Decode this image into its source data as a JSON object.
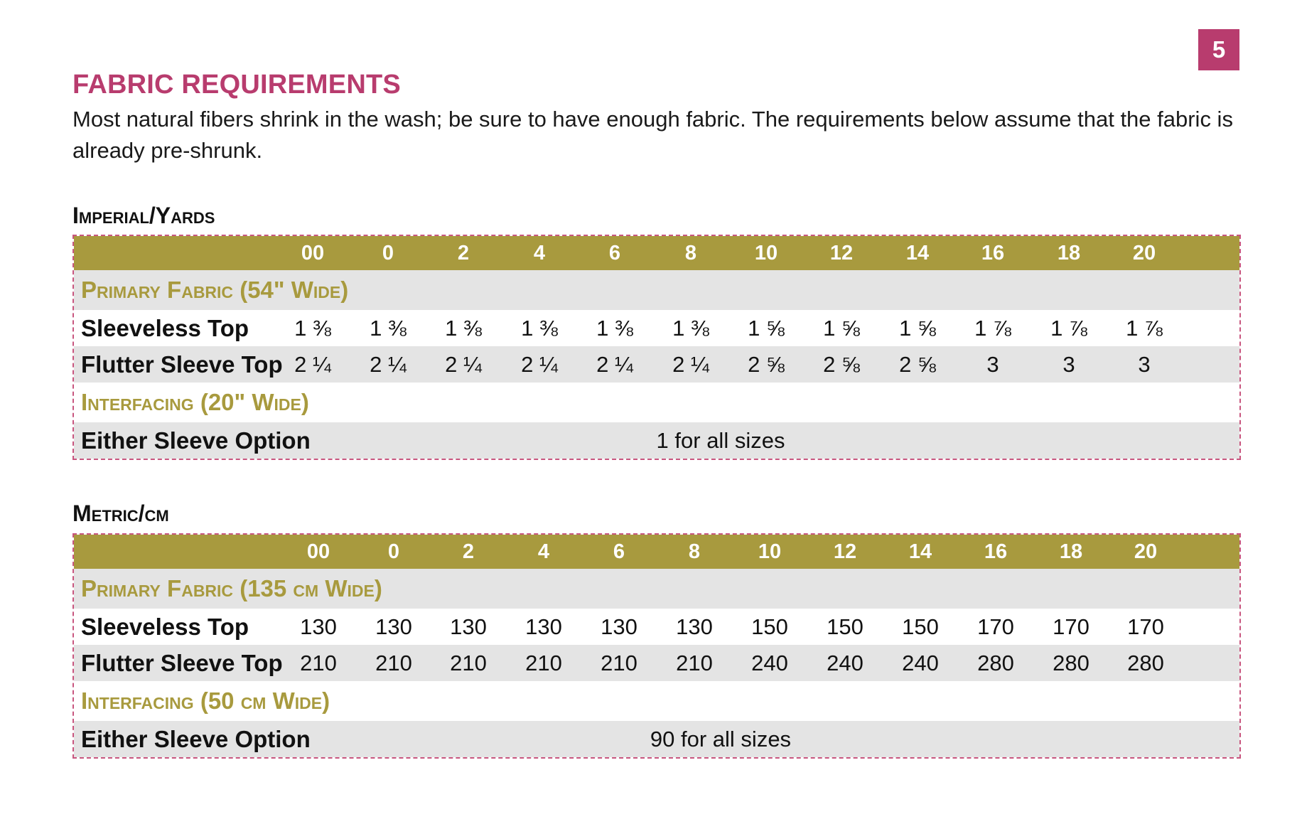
{
  "page": {
    "number": "5",
    "title": "FABRIC REQUIREMENTS",
    "intro": "Most natural fibers shrink in the wash; be sure to have enough fabric. The requirements below assume that the fabric is already pre-shrunk."
  },
  "sizes": [
    "00",
    "0",
    "2",
    "4",
    "6",
    "8",
    "10",
    "12",
    "14",
    "16",
    "18",
    "20"
  ],
  "imperial": {
    "title": "Imperial/Yards",
    "primary_label": "Primary Fabric (54\" Wide)",
    "sleeveless_label": "Sleeveless Top",
    "sleeveless": [
      "1 ⅜",
      "1 ⅜",
      "1 ⅜",
      "1 ⅜",
      "1 ⅜",
      "1 ⅜",
      "1 ⅝",
      "1 ⅝",
      "1 ⅝",
      "1 ⅞",
      "1 ⅞",
      "1 ⅞"
    ],
    "flutter_label": "Flutter Sleeve Top",
    "flutter": [
      "2 ¼",
      "2 ¼",
      "2 ¼",
      "2 ¼",
      "2 ¼",
      "2 ¼",
      "2 ⅝",
      "2 ⅝",
      "2 ⅝",
      "3",
      "3",
      "3"
    ],
    "interfacing_label": "Interfacing (20\" Wide)",
    "either_label": "Either Sleeve Option",
    "either_value": "1 for all sizes"
  },
  "metric": {
    "title": "Metric/cm",
    "primary_label": "Primary Fabric (135 cm Wide)",
    "sleeveless_label": "Sleeveless Top",
    "sleeveless": [
      "130",
      "130",
      "130",
      "130",
      "130",
      "130",
      "150",
      "150",
      "150",
      "170",
      "170",
      "170"
    ],
    "flutter_label": "Flutter Sleeve Top",
    "flutter": [
      "210",
      "210",
      "210",
      "210",
      "210",
      "210",
      "240",
      "240",
      "240",
      "280",
      "280",
      "280"
    ],
    "interfacing_label": "Interfacing (50 cm Wide)",
    "either_label": "Either Sleeve Option",
    "either_value": "90 for all sizes"
  },
  "colors": {
    "accent": "#b83c6e",
    "olive": "#a89a3e",
    "row_grey": "#e4e4e4"
  }
}
